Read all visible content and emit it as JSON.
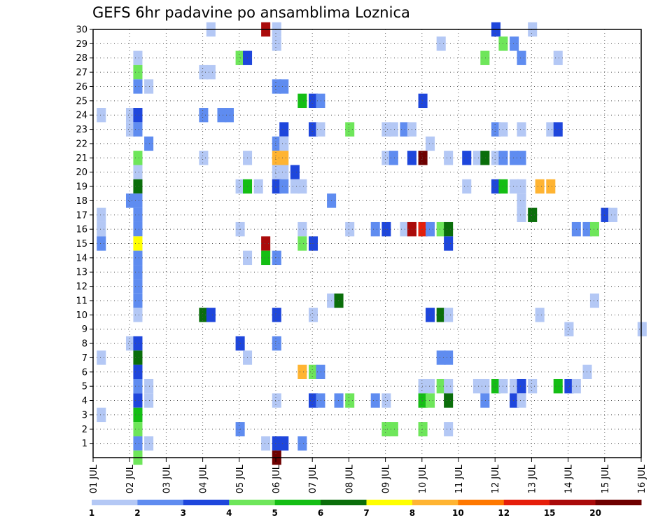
{
  "chart_data": {
    "type": "heatmap",
    "title": "GEFS 6hr padavine po ansamblima Loznica",
    "x_tick_labels": [
      "01 JUL",
      "02 JUL",
      "03 JUL",
      "04 JUL",
      "05 JUL",
      "06 JUL",
      "07 JUL",
      "08 JUL",
      "09 JUL",
      "10 JUL",
      "11 JUL",
      "12 JUL",
      "13 JUL",
      "14 JUL",
      "15 JUL",
      "16 JUL"
    ],
    "y_tick_labels": [
      "1",
      "2",
      "3",
      "4",
      "5",
      "6",
      "7",
      "8",
      "9",
      "10",
      "11",
      "12",
      "13",
      "14",
      "15",
      "16",
      "17",
      "18",
      "19",
      "20",
      "21",
      "22",
      "23",
      "24",
      "25",
      "26",
      "27",
      "28",
      "29",
      "30"
    ],
    "xlim_days": [
      1,
      16
    ],
    "ylim_members": [
      0,
      30
    ],
    "time_step_hours": 6,
    "grid": true,
    "legend_position": "bottom",
    "legend_labels": [
      "1",
      "2",
      "3",
      "4",
      "5",
      "6",
      "7",
      "8",
      "10",
      "12",
      "15",
      "20"
    ],
    "legend_colors": [
      "#b4c8f5",
      "#5f8cf0",
      "#1e46dc",
      "#6ee65a",
      "#14be14",
      "#0a6e0a",
      "#ffff00",
      "#ffb432",
      "#ff7800",
      "#e61e0a",
      "#aa0a0a",
      "#6e0000"
    ],
    "cells": [
      [
        30,
        4.1,
        1
      ],
      [
        30,
        5.6,
        15
      ],
      [
        30,
        5.9,
        1
      ],
      [
        30,
        11.9,
        3
      ],
      [
        30,
        12.9,
        1
      ],
      [
        29,
        5.9,
        1
      ],
      [
        29,
        10.4,
        1
      ],
      [
        29,
        12.1,
        4
      ],
      [
        29,
        12.4,
        2
      ],
      [
        28,
        2.1,
        1
      ],
      [
        28,
        4.9,
        4
      ],
      [
        28,
        5.1,
        3
      ],
      [
        28,
        11.6,
        4
      ],
      [
        28,
        12.6,
        2
      ],
      [
        28,
        13.6,
        1
      ],
      [
        27,
        2.1,
        4
      ],
      [
        27,
        3.9,
        1
      ],
      [
        27,
        4.1,
        1
      ],
      [
        26,
        2.1,
        2
      ],
      [
        26,
        2.4,
        1
      ],
      [
        26,
        5.9,
        2
      ],
      [
        26,
        6.1,
        2
      ],
      [
        25,
        6.6,
        5
      ],
      [
        25,
        6.9,
        3
      ],
      [
        25,
        7.1,
        2
      ],
      [
        25,
        9.9,
        3
      ],
      [
        24,
        1.1,
        1
      ],
      [
        24,
        1.9,
        1
      ],
      [
        24,
        2.1,
        3
      ],
      [
        24,
        3.9,
        2
      ],
      [
        24,
        4.4,
        2
      ],
      [
        24,
        4.6,
        2
      ],
      [
        23,
        1.9,
        1
      ],
      [
        23,
        2.1,
        2
      ],
      [
        23,
        6.1,
        3
      ],
      [
        23,
        6.9,
        3
      ],
      [
        23,
        7.1,
        1
      ],
      [
        23,
        7.9,
        4
      ],
      [
        23,
        8.9,
        1
      ],
      [
        23,
        9.1,
        1
      ],
      [
        23,
        9.4,
        2
      ],
      [
        23,
        9.6,
        1
      ],
      [
        23,
        11.9,
        2
      ],
      [
        23,
        12.1,
        1
      ],
      [
        23,
        12.6,
        1
      ],
      [
        23,
        13.4,
        1
      ],
      [
        23,
        13.6,
        3
      ],
      [
        22,
        2.4,
        2
      ],
      [
        22,
        5.9,
        2
      ],
      [
        22,
        6.1,
        1
      ],
      [
        22,
        10.1,
        1
      ],
      [
        21,
        2.1,
        4
      ],
      [
        21,
        3.9,
        1
      ],
      [
        21,
        5.1,
        1
      ],
      [
        21,
        5.9,
        8
      ],
      [
        21,
        6.1,
        8
      ],
      [
        21,
        8.9,
        1
      ],
      [
        21,
        9.1,
        2
      ],
      [
        21,
        9.6,
        3
      ],
      [
        21,
        9.9,
        20
      ],
      [
        21,
        10.6,
        1
      ],
      [
        21,
        11.1,
        3
      ],
      [
        21,
        11.4,
        1
      ],
      [
        21,
        11.6,
        6
      ],
      [
        21,
        11.9,
        1
      ],
      [
        21,
        12.1,
        2
      ],
      [
        21,
        12.4,
        2
      ],
      [
        21,
        12.6,
        2
      ],
      [
        20,
        2.1,
        1
      ],
      [
        20,
        5.9,
        1
      ],
      [
        20,
        6.1,
        1
      ],
      [
        20,
        6.4,
        3
      ],
      [
        19,
        2.1,
        6
      ],
      [
        19,
        4.9,
        1
      ],
      [
        19,
        5.1,
        5
      ],
      [
        19,
        5.4,
        1
      ],
      [
        19,
        5.9,
        3
      ],
      [
        19,
        6.1,
        2
      ],
      [
        19,
        6.4,
        1
      ],
      [
        19,
        6.6,
        1
      ],
      [
        19,
        11.1,
        1
      ],
      [
        19,
        11.9,
        3
      ],
      [
        19,
        12.1,
        5
      ],
      [
        19,
        12.4,
        1
      ],
      [
        19,
        12.6,
        1
      ],
      [
        19,
        13.1,
        8
      ],
      [
        19,
        13.4,
        8
      ],
      [
        18,
        1.9,
        2
      ],
      [
        18,
        2.1,
        2
      ],
      [
        18,
        7.4,
        2
      ],
      [
        18,
        12.6,
        1
      ],
      [
        17,
        1.1,
        1
      ],
      [
        17,
        2.1,
        2
      ],
      [
        17,
        12.6,
        1
      ],
      [
        17,
        12.9,
        6
      ],
      [
        17,
        14.9,
        3
      ],
      [
        17,
        15.1,
        1
      ],
      [
        16,
        1.1,
        1
      ],
      [
        16,
        2.1,
        2
      ],
      [
        16,
        4.9,
        1
      ],
      [
        16,
        6.6,
        1
      ],
      [
        16,
        7.9,
        1
      ],
      [
        16,
        8.6,
        2
      ],
      [
        16,
        8.9,
        3
      ],
      [
        16,
        9.4,
        1
      ],
      [
        16,
        9.6,
        15
      ],
      [
        16,
        9.9,
        12
      ],
      [
        16,
        10.1,
        2
      ],
      [
        16,
        10.4,
        4
      ],
      [
        16,
        10.6,
        6
      ],
      [
        16,
        14.1,
        2
      ],
      [
        16,
        14.4,
        2
      ],
      [
        16,
        14.6,
        4
      ],
      [
        15,
        1.1,
        2
      ],
      [
        15,
        2.1,
        7
      ],
      [
        15,
        5.6,
        15
      ],
      [
        15,
        6.6,
        4
      ],
      [
        15,
        6.9,
        3
      ],
      [
        15,
        10.6,
        3
      ],
      [
        14,
        2.1,
        2
      ],
      [
        14,
        5.1,
        1
      ],
      [
        14,
        5.6,
        5
      ],
      [
        14,
        5.9,
        2
      ],
      [
        13,
        2.1,
        2
      ],
      [
        12,
        2.1,
        2
      ],
      [
        11,
        2.1,
        2
      ],
      [
        11,
        7.4,
        1
      ],
      [
        11,
        7.6,
        6
      ],
      [
        11,
        14.6,
        1
      ],
      [
        10,
        2.1,
        1
      ],
      [
        10,
        3.9,
        6
      ],
      [
        10,
        4.1,
        3
      ],
      [
        10,
        5.9,
        3
      ],
      [
        10,
        6.9,
        1
      ],
      [
        10,
        10.1,
        3
      ],
      [
        10,
        10.4,
        6
      ],
      [
        10,
        10.6,
        1
      ],
      [
        10,
        13.1,
        1
      ],
      [
        9,
        13.9,
        1
      ],
      [
        9,
        15.9,
        1
      ],
      [
        8,
        1.9,
        1
      ],
      [
        8,
        2.1,
        3
      ],
      [
        8,
        4.9,
        3
      ],
      [
        8,
        5.9,
        2
      ],
      [
        7,
        1.1,
        1
      ],
      [
        7,
        2.1,
        6
      ],
      [
        7,
        5.1,
        1
      ],
      [
        7,
        10.4,
        2
      ],
      [
        7,
        10.6,
        2
      ],
      [
        6,
        2.1,
        3
      ],
      [
        6,
        6.6,
        9
      ],
      [
        6,
        6.9,
        4
      ],
      [
        6,
        7.1,
        2
      ],
      [
        6,
        14.4,
        1
      ],
      [
        5,
        2.1,
        2
      ],
      [
        5,
        2.4,
        1
      ],
      [
        5,
        9.9,
        1
      ],
      [
        5,
        10.1,
        1
      ],
      [
        5,
        10.4,
        4
      ],
      [
        5,
        10.6,
        1
      ],
      [
        5,
        11.4,
        1
      ],
      [
        5,
        11.6,
        1
      ],
      [
        5,
        11.9,
        5
      ],
      [
        5,
        12.1,
        1
      ],
      [
        5,
        12.4,
        1
      ],
      [
        5,
        12.6,
        3
      ],
      [
        5,
        12.9,
        1
      ],
      [
        5,
        13.6,
        5
      ],
      [
        5,
        13.9,
        3
      ],
      [
        5,
        14.1,
        1
      ],
      [
        4,
        2.1,
        3
      ],
      [
        4,
        2.4,
        1
      ],
      [
        4,
        5.9,
        1
      ],
      [
        4,
        6.9,
        3
      ],
      [
        4,
        7.1,
        2
      ],
      [
        4,
        7.6,
        2
      ],
      [
        4,
        7.9,
        4
      ],
      [
        4,
        8.6,
        2
      ],
      [
        4,
        8.9,
        1
      ],
      [
        4,
        9.9,
        5
      ],
      [
        4,
        10.1,
        4
      ],
      [
        4,
        10.6,
        6
      ],
      [
        4,
        11.6,
        2
      ],
      [
        4,
        12.4,
        3
      ],
      [
        4,
        12.6,
        1
      ],
      [
        3,
        1.1,
        1
      ],
      [
        3,
        2.1,
        5
      ],
      [
        2,
        2.1,
        4
      ],
      [
        2,
        4.9,
        2
      ],
      [
        2,
        8.9,
        4
      ],
      [
        2,
        9.1,
        4
      ],
      [
        2,
        9.9,
        4
      ],
      [
        2,
        10.6,
        1
      ],
      [
        1,
        2.1,
        2
      ],
      [
        1,
        2.4,
        1
      ],
      [
        1,
        5.6,
        1
      ],
      [
        1,
        5.9,
        3
      ],
      [
        1,
        6.1,
        3
      ],
      [
        1,
        6.6,
        2
      ],
      [
        0,
        2.1,
        4
      ],
      [
        0,
        5.9,
        20
      ]
    ]
  }
}
